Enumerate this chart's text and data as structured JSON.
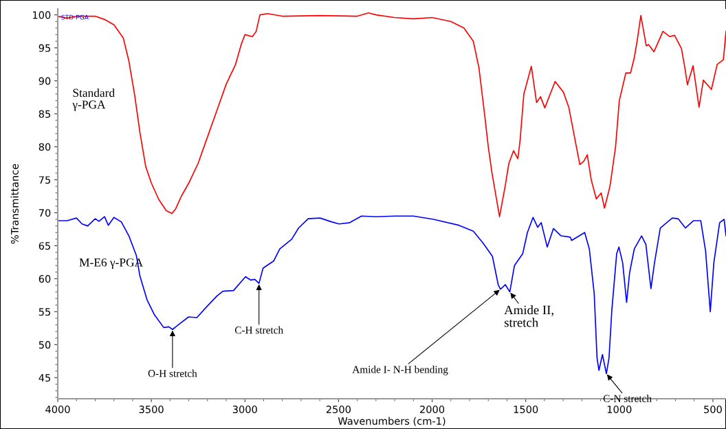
{
  "chart_data": {
    "type": "line",
    "xlabel": "Wavenumbers (cm-1)",
    "ylabel": "%Transmittance",
    "xlim": [
      4000,
      430
    ],
    "ylim": [
      41.8,
      100.9
    ],
    "xticks": [
      4000,
      3500,
      3000,
      2500,
      2000,
      1500,
      1000,
      500
    ],
    "yticks": [
      45,
      50,
      55,
      60,
      65,
      70,
      75,
      80,
      85,
      90,
      95,
      100
    ],
    "grid": false,
    "legend": false,
    "marker": "none",
    "line_style": "solid",
    "series": [
      {
        "name": "Standard\nγ-PGA",
        "color": "#ff0000",
        "x": [
          4000,
          3950,
          3900,
          3800,
          3750,
          3700,
          3650,
          3620,
          3590,
          3560,
          3530,
          3500,
          3460,
          3420,
          3390,
          3370,
          3340,
          3300,
          3250,
          3200,
          3150,
          3100,
          3050,
          3020,
          3000,
          2960,
          2940,
          2920,
          2880,
          2800,
          2600,
          2400,
          2340,
          2300,
          2200,
          2100,
          2000,
          1900,
          1830,
          1780,
          1750,
          1720,
          1700,
          1680,
          1640,
          1610,
          1590,
          1565,
          1542,
          1530,
          1510,
          1470,
          1442,
          1421,
          1398,
          1343,
          1299,
          1270,
          1211,
          1190,
          1171,
          1150,
          1123,
          1097,
          1079,
          1050,
          1020,
          1000,
          965,
          940,
          920,
          905,
          885,
          856,
          844,
          815,
          767,
          730,
          705,
          668,
          650,
          636,
          606,
          574,
          551,
          508,
          477,
          444,
          430
        ],
        "values": [
          99.8,
          99.5,
          99.8,
          99.8,
          99.3,
          98.5,
          96.5,
          93,
          88,
          82,
          77,
          74.5,
          72,
          70.3,
          69.9,
          70.6,
          72.5,
          74.5,
          77.5,
          81.5,
          85.5,
          89.5,
          92.5,
          95.5,
          97,
          96.7,
          97.5,
          100,
          100.2,
          99.8,
          99.9,
          99.8,
          100.3,
          100,
          99.6,
          99.4,
          99.6,
          99,
          98,
          96,
          92,
          85,
          80,
          76,
          69.4,
          74,
          77.5,
          79.4,
          78.2,
          81,
          88,
          92.2,
          86.7,
          87.6,
          85.9,
          89.9,
          88.3,
          86,
          77.3,
          77.8,
          78.8,
          75,
          72.1,
          73,
          70.7,
          74,
          80,
          87,
          91.2,
          91.2,
          93.5,
          96,
          99.9,
          95.3,
          95.5,
          94.4,
          97.5,
          96.7,
          96.9,
          94.9,
          92,
          89.4,
          92.3,
          86,
          90.1,
          88.7,
          92.5,
          93.2,
          97.5
        ]
      },
      {
        "name": "M-E6 γ-PGA",
        "color": "#0000ff",
        "x": [
          4000,
          3950,
          3900,
          3870,
          3840,
          3800,
          3780,
          3750,
          3730,
          3700,
          3660,
          3620,
          3580,
          3561,
          3523,
          3485,
          3434,
          3406,
          3387,
          3352,
          3301,
          3257,
          3206,
          3149,
          3118,
          3061,
          2997,
          2970,
          2947,
          2925,
          2903,
          2846,
          2814,
          2750,
          2713,
          2662,
          2599,
          2535,
          2497,
          2440,
          2377,
          2300,
          2200,
          2100,
          1993,
          1857,
          1780,
          1728,
          1678,
          1647,
          1635,
          1609,
          1585,
          1560,
          1516,
          1491,
          1461,
          1436,
          1417,
          1385,
          1352,
          1311,
          1262,
          1255,
          1185,
          1160,
          1134,
          1119,
          1109,
          1090,
          1069,
          1055,
          1040,
          1014,
          1002,
          982,
          961,
          945,
          920,
          881,
          858,
          831,
          812,
          781,
          717,
          686,
          647,
          603,
          565,
          539,
          514,
          495,
          464,
          440,
          430
        ],
        "values": [
          68.8,
          68.8,
          69.2,
          68.3,
          68.0,
          69.1,
          68.7,
          69.4,
          68.1,
          69.3,
          68.6,
          66.5,
          63.5,
          60.4,
          56.8,
          54.6,
          52.6,
          52.7,
          52.3,
          53.1,
          54.2,
          54.1,
          55.7,
          57.4,
          58.1,
          58.2,
          60.3,
          59.8,
          59.9,
          59.3,
          61.6,
          62.7,
          64.5,
          66,
          67.7,
          69.1,
          69.2,
          68.6,
          68.3,
          68.5,
          69.5,
          69.4,
          69.5,
          69.5,
          69.0,
          68.1,
          67.2,
          65.4,
          63.4,
          59.1,
          58.4,
          59.1,
          58.0,
          62.0,
          63.8,
          67.0,
          69.3,
          67.8,
          68.5,
          64.8,
          67.6,
          66.5,
          66.3,
          65.8,
          67.0,
          64.5,
          57.7,
          48.0,
          46.1,
          48.5,
          45.6,
          48,
          55.2,
          63.8,
          64.8,
          62.4,
          56.4,
          60.9,
          64.5,
          66.5,
          65.2,
          58.5,
          62.4,
          67.7,
          69.2,
          69.1,
          67.7,
          68.8,
          68.8,
          64.2,
          55.0,
          62.4,
          68.5,
          69.0,
          66.5
        ]
      }
    ],
    "annotations": [
      "STD-PGA",
      {
        "text": "O-H stretch",
        "x": 3387,
        "y": 52.3
      },
      {
        "text": "C-H stretch",
        "x": 2925,
        "y": 59.3
      },
      {
        "text": "Amide I- N-H bending",
        "x": 1635,
        "y": 58.4
      },
      {
        "text": "Amide II,\nstretch",
        "x": 1585,
        "y": 58.0
      },
      {
        "text": "C-N stretch",
        "x": 1069,
        "y": 45.6
      }
    ]
  }
}
